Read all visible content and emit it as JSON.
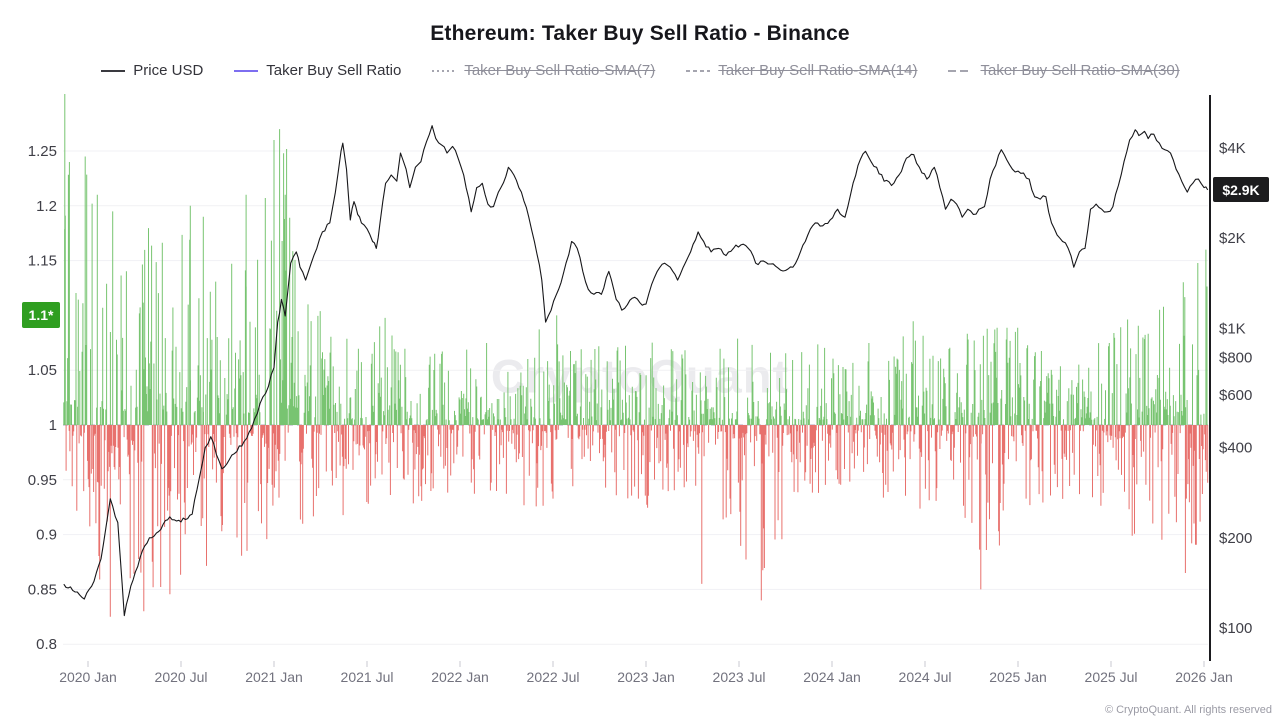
{
  "chart": {
    "title": "Ethereum: Taker Buy Sell Ratio - Binance",
    "watermark": "CryptoQuant",
    "copyright": "© CryptoQuant. All rights reserved",
    "legend": [
      {
        "label": "Price USD",
        "swatch": "solid",
        "color": "#3a3a40",
        "active": true
      },
      {
        "label": "Taker Buy Sell Ratio",
        "swatch": "solid",
        "color": "#7d6ef0",
        "active": true
      },
      {
        "label": "Taker Buy Sell Ratio-SMA(7)",
        "swatch": "dotted",
        "color": "#a5a5af",
        "active": false
      },
      {
        "label": "Taker Buy Sell Ratio-SMA(14)",
        "swatch": "dashed-short",
        "color": "#a5a5af",
        "active": false
      },
      {
        "label": "Taker Buy Sell Ratio-SMA(30)",
        "swatch": "dashed-long",
        "color": "#a5a5af",
        "active": false
      }
    ],
    "badges": {
      "current_ratio_label": "1.1*",
      "current_ratio_value": 1.1,
      "current_ratio_color": "#2f9e20",
      "current_price_label": "$2.9K",
      "current_price_value": 2900,
      "current_price_color": "#1c1c1e"
    }
  },
  "chart_data": {
    "type": "mixed-bar-line",
    "title": "Ethereum: Taker Buy Sell Ratio - Binance",
    "x_domain": [
      2019.87,
      2026.02
    ],
    "x_axis": {
      "ticks": [
        {
          "label": "2020 Jan",
          "value": 2020.0
        },
        {
          "label": "2020 Jul",
          "value": 2020.5
        },
        {
          "label": "2021 Jan",
          "value": 2021.0
        },
        {
          "label": "2021 Jul",
          "value": 2021.5
        },
        {
          "label": "2022 Jan",
          "value": 2022.0
        },
        {
          "label": "2022 Jul",
          "value": 2022.5
        },
        {
          "label": "2023 Jan",
          "value": 2023.0
        },
        {
          "label": "2023 Jul",
          "value": 2023.5
        },
        {
          "label": "2024 Jan",
          "value": 2024.0
        },
        {
          "label": "2024 Jul",
          "value": 2024.5
        },
        {
          "label": "2025 Jan",
          "value": 2025.0
        },
        {
          "label": "2025 Jul",
          "value": 2025.5
        },
        {
          "label": "2026 Jan",
          "value": 2026.0
        }
      ]
    },
    "left_axis": {
      "name": "Taker Buy Sell Ratio",
      "ticks": [
        1.25,
        1.2,
        1.15,
        1.05,
        1,
        0.95,
        0.9,
        0.85,
        0.8
      ],
      "range": [
        0.788,
        1.302
      ],
      "scale": "linear"
    },
    "right_axis": {
      "name": "Price USD",
      "ticks": [
        {
          "label": "$4K",
          "value": 4000
        },
        {
          "label": "$2K",
          "value": 2000
        },
        {
          "label": "$1K",
          "value": 1000
        },
        {
          "label": "$800",
          "value": 800
        },
        {
          "label": "$600",
          "value": 600
        },
        {
          "label": "$400",
          "value": 400
        },
        {
          "label": "$200",
          "value": 200
        },
        {
          "label": "$100",
          "value": 100
        }
      ],
      "scale": "log"
    },
    "baseline": 1,
    "series": [
      {
        "name": "Price USD",
        "type": "line",
        "color": "#17171a",
        "axis": "right",
        "points": [
          [
            2019.87,
            140
          ],
          [
            2019.93,
            132
          ],
          [
            2019.98,
            125
          ],
          [
            2020.02,
            138
          ],
          [
            2020.07,
            170
          ],
          [
            2020.12,
            270
          ],
          [
            2020.16,
            225
          ],
          [
            2020.195,
            110
          ],
          [
            2020.23,
            138
          ],
          [
            2020.28,
            172
          ],
          [
            2020.33,
            200
          ],
          [
            2020.38,
            210
          ],
          [
            2020.44,
            235
          ],
          [
            2020.5,
            226
          ],
          [
            2020.56,
            240
          ],
          [
            2020.6,
            320
          ],
          [
            2020.63,
            400
          ],
          [
            2020.66,
            435
          ],
          [
            2020.69,
            380
          ],
          [
            2020.72,
            340
          ],
          [
            2020.76,
            365
          ],
          [
            2020.8,
            388
          ],
          [
            2020.84,
            420
          ],
          [
            2020.88,
            465
          ],
          [
            2020.91,
            520
          ],
          [
            2020.94,
            590
          ],
          [
            2020.97,
            640
          ],
          [
            2021.0,
            740
          ],
          [
            2021.02,
            1050
          ],
          [
            2021.04,
            1250
          ],
          [
            2021.06,
            1100
          ],
          [
            2021.09,
            1650
          ],
          [
            2021.12,
            1800
          ],
          [
            2021.14,
            1600
          ],
          [
            2021.17,
            1450
          ],
          [
            2021.2,
            1650
          ],
          [
            2021.23,
            1850
          ],
          [
            2021.26,
            2100
          ],
          [
            2021.3,
            2250
          ],
          [
            2021.33,
            2850
          ],
          [
            2021.36,
            3900
          ],
          [
            2021.37,
            4150
          ],
          [
            2021.39,
            3400
          ],
          [
            2021.41,
            2300
          ],
          [
            2021.43,
            2650
          ],
          [
            2021.45,
            2400
          ],
          [
            2021.47,
            2250
          ],
          [
            2021.5,
            2150
          ],
          [
            2021.53,
            1950
          ],
          [
            2021.55,
            1850
          ],
          [
            2021.57,
            2250
          ],
          [
            2021.6,
            3050
          ],
          [
            2021.63,
            3250
          ],
          [
            2021.66,
            3100
          ],
          [
            2021.68,
            3850
          ],
          [
            2021.71,
            3400
          ],
          [
            2021.73,
            2950
          ],
          [
            2021.76,
            3450
          ],
          [
            2021.79,
            3600
          ],
          [
            2021.82,
            4200
          ],
          [
            2021.85,
            4750
          ],
          [
            2021.87,
            4300
          ],
          [
            2021.9,
            4100
          ],
          [
            2021.93,
            3850
          ],
          [
            2021.96,
            4050
          ],
          [
            2021.99,
            3700
          ],
          [
            2022.02,
            3250
          ],
          [
            2022.06,
            2450
          ],
          [
            2022.09,
            2950
          ],
          [
            2022.12,
            3050
          ],
          [
            2022.15,
            2600
          ],
          [
            2022.18,
            2550
          ],
          [
            2022.22,
            2950
          ],
          [
            2022.26,
            3450
          ],
          [
            2022.29,
            3250
          ],
          [
            2022.33,
            2850
          ],
          [
            2022.37,
            2350
          ],
          [
            2022.4,
            1950
          ],
          [
            2022.44,
            1450
          ],
          [
            2022.46,
            1050
          ],
          [
            2022.49,
            1150
          ],
          [
            2022.53,
            1350
          ],
          [
            2022.57,
            1650
          ],
          [
            2022.6,
            1950
          ],
          [
            2022.63,
            1850
          ],
          [
            2022.66,
            1550
          ],
          [
            2022.69,
            1350
          ],
          [
            2022.72,
            1300
          ],
          [
            2022.76,
            1300
          ],
          [
            2022.8,
            1550
          ],
          [
            2022.84,
            1250
          ],
          [
            2022.87,
            1150
          ],
          [
            2022.9,
            1200
          ],
          [
            2022.94,
            1270
          ],
          [
            2022.98,
            1195
          ],
          [
            2023.0,
            1205
          ],
          [
            2023.03,
            1400
          ],
          [
            2023.06,
            1550
          ],
          [
            2023.1,
            1650
          ],
          [
            2023.13,
            1600
          ],
          [
            2023.17,
            1450
          ],
          [
            2023.2,
            1600
          ],
          [
            2023.24,
            1800
          ],
          [
            2023.28,
            2100
          ],
          [
            2023.31,
            1950
          ],
          [
            2023.35,
            1800
          ],
          [
            2023.39,
            1850
          ],
          [
            2023.43,
            1750
          ],
          [
            2023.47,
            1850
          ],
          [
            2023.51,
            1900
          ],
          [
            2023.55,
            1850
          ],
          [
            2023.59,
            1650
          ],
          [
            2023.63,
            1680
          ],
          [
            2023.67,
            1640
          ],
          [
            2023.71,
            1590
          ],
          [
            2023.75,
            1560
          ],
          [
            2023.79,
            1600
          ],
          [
            2023.83,
            1800
          ],
          [
            2023.87,
            2050
          ],
          [
            2023.91,
            2250
          ],
          [
            2023.95,
            2200
          ],
          [
            2023.99,
            2300
          ],
          [
            2024.03,
            2500
          ],
          [
            2024.07,
            2350
          ],
          [
            2024.1,
            2800
          ],
          [
            2024.14,
            3500
          ],
          [
            2024.18,
            3900
          ],
          [
            2024.21,
            3600
          ],
          [
            2024.24,
            3450
          ],
          [
            2024.28,
            3100
          ],
          [
            2024.32,
            3000
          ],
          [
            2024.36,
            3250
          ],
          [
            2024.4,
            3700
          ],
          [
            2024.44,
            3800
          ],
          [
            2024.47,
            3450
          ],
          [
            2024.51,
            3150
          ],
          [
            2024.55,
            3450
          ],
          [
            2024.58,
            2950
          ],
          [
            2024.61,
            2500
          ],
          [
            2024.64,
            2700
          ],
          [
            2024.67,
            2600
          ],
          [
            2024.7,
            2350
          ],
          [
            2024.73,
            2500
          ],
          [
            2024.76,
            2400
          ],
          [
            2024.79,
            2500
          ],
          [
            2024.82,
            2550
          ],
          [
            2024.85,
            3150
          ],
          [
            2024.88,
            3500
          ],
          [
            2024.91,
            3950
          ],
          [
            2024.94,
            3650
          ],
          [
            2024.97,
            3400
          ],
          [
            2025.0,
            3350
          ],
          [
            2025.03,
            3300
          ],
          [
            2025.06,
            3150
          ],
          [
            2025.09,
            2750
          ],
          [
            2025.12,
            2700
          ],
          [
            2025.15,
            2750
          ],
          [
            2025.18,
            2250
          ],
          [
            2025.21,
            2050
          ],
          [
            2025.24,
            1950
          ],
          [
            2025.27,
            1850
          ],
          [
            2025.3,
            1600
          ],
          [
            2025.33,
            1800
          ],
          [
            2025.36,
            1850
          ],
          [
            2025.39,
            2500
          ],
          [
            2025.42,
            2600
          ],
          [
            2025.45,
            2500
          ],
          [
            2025.48,
            2450
          ],
          [
            2025.51,
            2550
          ],
          [
            2025.54,
            3000
          ],
          [
            2025.57,
            3600
          ],
          [
            2025.6,
            4250
          ],
          [
            2025.63,
            4600
          ],
          [
            2025.65,
            4400
          ],
          [
            2025.68,
            4550
          ],
          [
            2025.7,
            4300
          ],
          [
            2025.73,
            4450
          ],
          [
            2025.76,
            4150
          ],
          [
            2025.79,
            3950
          ],
          [
            2025.82,
            3850
          ],
          [
            2025.85,
            3400
          ],
          [
            2025.88,
            3100
          ],
          [
            2025.91,
            2850
          ],
          [
            2025.94,
            3050
          ],
          [
            2025.97,
            3150
          ],
          [
            2026.0,
            2950
          ],
          [
            2026.02,
            2900
          ]
        ]
      },
      {
        "name": "Taker Buy Sell Ratio",
        "type": "bar",
        "axis": "left",
        "color_positive": "#78c471",
        "color_negative": "#e8716d",
        "baseline": 1,
        "approx_points": 2200,
        "note": "Daily bars above/below 1; rendered from envelope of observed extremes",
        "envelope": [
          [
            2019.87,
            1.3,
            0.92
          ],
          [
            2020.0,
            1.26,
            0.88
          ],
          [
            2020.15,
            1.22,
            0.83
          ],
          [
            2020.3,
            1.21,
            0.82
          ],
          [
            2020.5,
            1.2,
            0.85
          ],
          [
            2020.7,
            1.15,
            0.87
          ],
          [
            2020.9,
            1.18,
            0.88
          ],
          [
            2021.05,
            1.27,
            0.9
          ],
          [
            2021.2,
            1.12,
            0.9
          ],
          [
            2021.4,
            1.08,
            0.91
          ],
          [
            2021.6,
            1.1,
            0.92
          ],
          [
            2021.8,
            1.07,
            0.93
          ],
          [
            2022.0,
            1.07,
            0.93
          ],
          [
            2022.2,
            1.08,
            0.93
          ],
          [
            2022.4,
            1.09,
            0.92
          ],
          [
            2022.6,
            1.08,
            0.93
          ],
          [
            2022.8,
            1.07,
            0.93
          ],
          [
            2023.0,
            1.08,
            0.92
          ],
          [
            2023.2,
            1.07,
            0.92
          ],
          [
            2023.4,
            1.08,
            0.91
          ],
          [
            2023.6,
            1.09,
            0.86
          ],
          [
            2023.8,
            1.08,
            0.91
          ],
          [
            2024.0,
            1.08,
            0.93
          ],
          [
            2024.2,
            1.09,
            0.93
          ],
          [
            2024.4,
            1.1,
            0.92
          ],
          [
            2024.6,
            1.08,
            0.92
          ],
          [
            2024.8,
            1.09,
            0.86
          ],
          [
            2025.0,
            1.1,
            0.91
          ],
          [
            2025.2,
            1.07,
            0.92
          ],
          [
            2025.4,
            1.08,
            0.92
          ],
          [
            2025.6,
            1.1,
            0.9
          ],
          [
            2025.8,
            1.12,
            0.88
          ],
          [
            2026.0,
            1.16,
            0.88
          ]
        ],
        "extremes": [
          [
            2019.875,
            1.302
          ],
          [
            2019.9,
            1.24
          ],
          [
            2020.05,
            1.21
          ],
          [
            2020.12,
            0.825
          ],
          [
            2020.3,
            0.83
          ],
          [
            2020.55,
            1.2
          ],
          [
            2020.62,
            1.19
          ],
          [
            2020.85,
            1.21
          ],
          [
            2021.0,
            1.26
          ],
          [
            2021.03,
            1.27
          ],
          [
            2021.06,
            1.21
          ],
          [
            2022.52,
            1.1
          ],
          [
            2023.3,
            0.855
          ],
          [
            2023.62,
            0.84
          ],
          [
            2024.8,
            0.85
          ],
          [
            2025.9,
            0.865
          ],
          [
            2026.01,
            1.16
          ]
        ],
        "latest_value": 1.1
      }
    ],
    "legend_position": "top",
    "grid": "horizontal-faint"
  }
}
